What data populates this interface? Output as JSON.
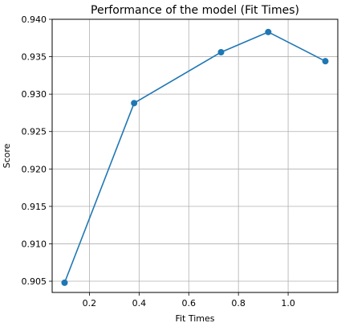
{
  "chart_data": {
    "type": "line",
    "title": "Performance of the model (Fit Times)",
    "xlabel": "Fit Times",
    "ylabel": "Score",
    "xlim": [
      0.05,
      1.2
    ],
    "ylim": [
      0.9035,
      0.94
    ],
    "xticks": [
      {
        "value": 0.2,
        "label": "0.2"
      },
      {
        "value": 0.4,
        "label": "0.4"
      },
      {
        "value": 0.6,
        "label": "0.6"
      },
      {
        "value": 0.8,
        "label": "0.8"
      },
      {
        "value": 1.0,
        "label": "1.0"
      }
    ],
    "yticks": [
      {
        "value": 0.905,
        "label": "0.905"
      },
      {
        "value": 0.91,
        "label": "0.910"
      },
      {
        "value": 0.915,
        "label": "0.915"
      },
      {
        "value": 0.92,
        "label": "0.920"
      },
      {
        "value": 0.925,
        "label": "0.925"
      },
      {
        "value": 0.93,
        "label": "0.930"
      },
      {
        "value": 0.935,
        "label": "0.935"
      },
      {
        "value": 0.94,
        "label": "0.940"
      }
    ],
    "grid": true,
    "series": [
      {
        "name": "score",
        "color": "#1f77b4",
        "marker": "circle",
        "x": [
          0.1,
          0.38,
          0.73,
          0.92,
          1.15
        ],
        "values": [
          0.9048,
          0.9288,
          0.9356,
          0.9383,
          0.9344
        ]
      }
    ]
  }
}
